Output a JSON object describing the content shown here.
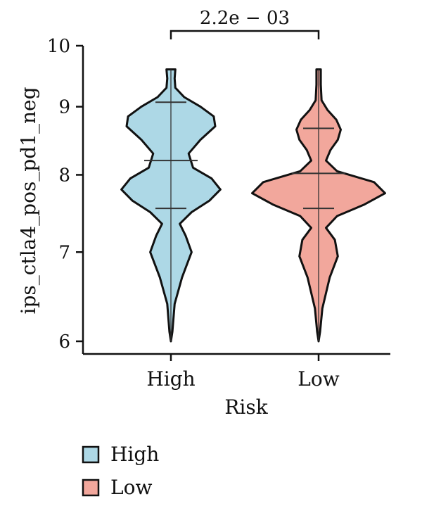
{
  "chart_data": {
    "type": "violin",
    "title": "",
    "xlabel": "Risk",
    "ylabel": "ips_ctla4_pos_pd1_neg",
    "y_ticks": [
      6,
      7,
      8,
      9,
      10
    ],
    "ylim": [
      6,
      10
    ],
    "y_scale": "log",
    "categories": [
      "High",
      "Low"
    ],
    "series": [
      {
        "name": "High",
        "color": "#add8e6",
        "mean": 8.2,
        "sd_low": 7.55,
        "sd_high": 9.07,
        "min": 6.0,
        "max": 9.6,
        "density": [
          [
            6.0,
            0.0
          ],
          [
            6.1,
            0.02
          ],
          [
            6.4,
            0.05
          ],
          [
            6.7,
            0.15
          ],
          [
            7.0,
            0.28
          ],
          [
            7.2,
            0.2
          ],
          [
            7.35,
            0.12
          ],
          [
            7.5,
            0.28
          ],
          [
            7.65,
            0.52
          ],
          [
            7.8,
            0.67
          ],
          [
            7.95,
            0.55
          ],
          [
            8.1,
            0.3
          ],
          [
            8.3,
            0.24
          ],
          [
            8.5,
            0.4
          ],
          [
            8.7,
            0.6
          ],
          [
            8.85,
            0.58
          ],
          [
            9.0,
            0.4
          ],
          [
            9.15,
            0.18
          ],
          [
            9.3,
            0.06
          ],
          [
            9.45,
            0.05
          ],
          [
            9.6,
            0.06
          ]
        ]
      },
      {
        "name": "Low",
        "color": "#f2a79c",
        "mean": 8.02,
        "sd_low": 7.55,
        "sd_high": 8.67,
        "min": 6.0,
        "max": 9.6,
        "density": [
          [
            6.0,
            0.0
          ],
          [
            6.1,
            0.02
          ],
          [
            6.35,
            0.05
          ],
          [
            6.7,
            0.15
          ],
          [
            6.95,
            0.26
          ],
          [
            7.15,
            0.22
          ],
          [
            7.3,
            0.1
          ],
          [
            7.45,
            0.25
          ],
          [
            7.6,
            0.62
          ],
          [
            7.75,
            0.9
          ],
          [
            7.9,
            0.75
          ],
          [
            8.05,
            0.25
          ],
          [
            8.2,
            0.1
          ],
          [
            8.35,
            0.16
          ],
          [
            8.5,
            0.26
          ],
          [
            8.65,
            0.3
          ],
          [
            8.8,
            0.24
          ],
          [
            8.95,
            0.12
          ],
          [
            9.1,
            0.04
          ],
          [
            9.35,
            0.03
          ],
          [
            9.6,
            0.03
          ]
        ]
      }
    ],
    "comparison": {
      "between": [
        "High",
        "Low"
      ],
      "label": "2.2e − 03"
    },
    "legend": {
      "placement": "bottom-left",
      "entries": [
        "High",
        "Low"
      ]
    },
    "grid": false
  }
}
